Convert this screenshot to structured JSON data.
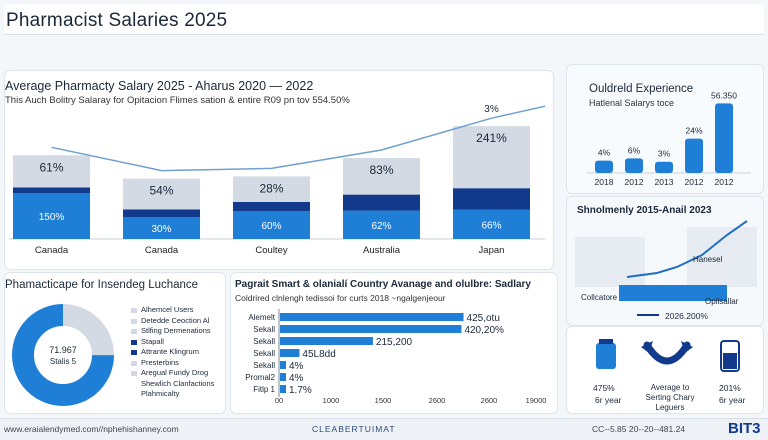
{
  "header": {
    "title": "Pharmacist Salaries 2025"
  },
  "main_chart": {
    "title": "Average Pharmacty Salary 2025 - Aharus 2020 — 2022",
    "subtitle": "This Auch Bolitry Salaray for Opitacion Flimes sation & entire R09 pn tov 554.50%",
    "colors": {
      "light": "#d3dae3",
      "dark": "#123a8c",
      "mid": "#1f7fd6",
      "line": "#6fa0d0"
    }
  },
  "chart_data": [
    {
      "type": "bar",
      "categories": [
        "Canada",
        "Canada",
        "Coultey",
        "Australia",
        "Japan"
      ],
      "series": [
        {
          "values": [
            150,
            30,
            60,
            62,
            66
          ],
          "labels": [
            "150%",
            "30%",
            "60%",
            "62%",
            "66%"
          ]
        },
        {
          "values": [
            5,
            8,
            10,
            20,
            28
          ]
        },
        {
          "values": [
            61,
            54,
            28,
            83,
            241
          ],
          "labels": [
            "61%",
            "54%",
            "28%",
            "83%",
            "241%"
          ]
        }
      ],
      "annotation": "3%"
    },
    {
      "type": "bar",
      "title": "Ouldreld Experience",
      "subtitle": "Hatlenal Salarys toce",
      "categories": [
        "2018",
        "2012",
        "2013",
        "2012",
        "2012"
      ],
      "values": [
        4,
        6,
        3,
        24,
        56
      ],
      "labels": [
        "4%",
        "6%",
        "3%",
        "24%",
        "56.350"
      ]
    },
    {
      "type": "line",
      "title": "Shnolmenly 2015-Anail 2023",
      "labels": [
        "Hanesel",
        "Collcatore",
        "Opilsallar",
        "2026.200%"
      ]
    },
    {
      "type": "pie",
      "title": "Phamacticape for Insendeg Luchance",
      "slices": [
        {
          "label": "Alhemcel Users",
          "value": 25
        },
        {
          "label": "Detedde Ceoction Al Stlfing Dermenations",
          "value": 75
        }
      ],
      "center_label": "71.967 Stalis 5",
      "legend": [
        "Alhemcel Users",
        "Detedde Ceoction Al",
        "Stlfing Dermenations",
        "Stapall",
        "Attrante Klingrum",
        "Presterbins",
        "Aregual Fundy Drog",
        "Shewlich Clanfactions",
        "Plahmicalty"
      ]
    },
    {
      "type": "bar",
      "title": "Pagrait Smart & olanialí Country Avanage and olulbre: Sadlary",
      "subtitle": "Coldrired clnlengh tedissoi for curts 2018 ~ngalgenjeour",
      "categories": [
        "Alemelt",
        "Sekall",
        "Sekall",
        "Sekall",
        "Sekall",
        "Promal2",
        "Fitlp 1"
      ],
      "values": [
        425,
        420.2,
        215.2,
        45,
        4,
        4,
        1.7
      ],
      "labels": [
        "425,otu",
        "420,20%",
        "215,200",
        "45L8dd",
        "4%",
        "4%",
        "1.7%"
      ],
      "x_ticks": [
        "00",
        "1000",
        "1500",
        "2600",
        "2600",
        "19000"
      ]
    }
  ],
  "icons": {
    "items": [
      {
        "value": "475%",
        "caption": "6r year",
        "icon": "bottle-icon"
      },
      {
        "value": "Average to Serting Chary Leguers",
        "caption": "",
        "icon": "horseshoe-icon"
      },
      {
        "value": "201%",
        "caption": "6r year",
        "icon": "vial-icon"
      }
    ]
  },
  "footer": {
    "left": "www.eraialendymed.com//nphehishanney.com",
    "center": "CLEABERTUIMAT",
    "right": "CC--5.85 20--20--481.24",
    "logo": "BIT3"
  }
}
